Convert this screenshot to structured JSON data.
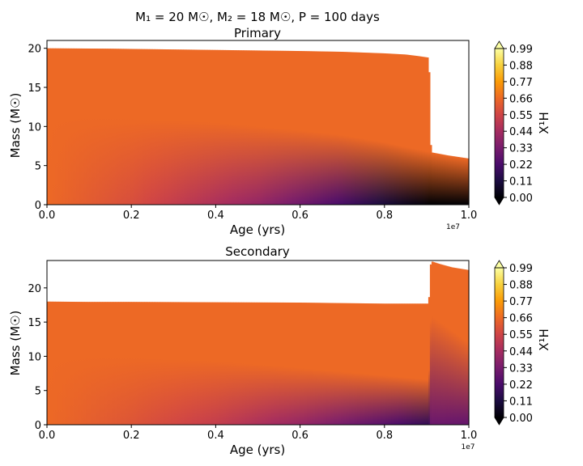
{
  "figure": {
    "suptitle": "M₁ = 20 M☉, M₂ = 18 M☉, P = 100 days",
    "colorscale_stops": [
      "#000004",
      "#1b0c41",
      "#4a0c6b",
      "#781c6d",
      "#a52c60",
      "#cf4446",
      "#ed6925",
      "#fb9b06",
      "#f7d13d",
      "#fcffa4"
    ]
  },
  "chart_data": [
    {
      "type": "heatmap",
      "title": "Primary",
      "xlabel": "Age (yrs)",
      "ylabel": "Mass (M☉)",
      "x_offset_label": "1e7",
      "xlim": [
        0.0,
        1.0
      ],
      "ylim": [
        0,
        21
      ],
      "xticks": [
        0.0,
        0.2,
        0.4,
        0.6,
        0.8,
        1.0
      ],
      "xtick_labels": [
        "0.0",
        "0.2",
        "0.4",
        "0.6",
        "0.8",
        "1.0"
      ],
      "yticks": [
        0,
        5,
        10,
        15,
        20
      ],
      "ytick_labels": [
        "0",
        "5",
        "10",
        "15",
        "20"
      ],
      "colorbar": {
        "label": "X¹H",
        "range": [
          0.0,
          0.99
        ],
        "extend": "both",
        "ticks": [
          0.0,
          0.11,
          0.22,
          0.33,
          0.44,
          0.55,
          0.66,
          0.77,
          0.88,
          0.99
        ],
        "tick_labels": [
          "0.00",
          "0.11",
          "0.22",
          "0.33",
          "0.44",
          "0.55",
          "0.66",
          "0.77",
          "0.88",
          "0.99"
        ]
      },
      "total_mass": {
        "x": [
          0.0,
          0.15,
          0.3,
          0.45,
          0.6,
          0.7,
          0.8,
          0.85,
          0.88,
          0.905,
          0.91,
          0.95,
          1.0
        ],
        "y": [
          20.0,
          19.95,
          19.85,
          19.75,
          19.65,
          19.55,
          19.35,
          19.2,
          19.0,
          18.8,
          6.7,
          6.3,
          5.9
        ]
      },
      "core_boundary": {
        "x": [
          0.0,
          0.1,
          0.2,
          0.3,
          0.4,
          0.5,
          0.6,
          0.7,
          0.8,
          0.85,
          0.905
        ],
        "y": [
          11.2,
          11.2,
          11.0,
          10.8,
          10.5,
          10.0,
          9.5,
          8.9,
          8.0,
          7.4,
          6.8
        ]
      },
      "core_center_x1H": {
        "x": [
          0.0,
          0.2,
          0.4,
          0.5,
          0.6,
          0.7,
          0.8,
          0.85,
          0.9,
          0.905
        ],
        "y": [
          0.66,
          0.58,
          0.46,
          0.4,
          0.31,
          0.21,
          0.1,
          0.05,
          0.01,
          0.0
        ]
      },
      "envelope_x1H": 0.66
    },
    {
      "type": "heatmap",
      "title": "Secondary",
      "xlabel": "Age (yrs)",
      "ylabel": "Mass (M☉)",
      "x_offset_label": "1e7",
      "xlim": [
        0.0,
        1.0
      ],
      "ylim": [
        0,
        24
      ],
      "xticks": [
        0.0,
        0.2,
        0.4,
        0.6,
        0.8,
        1.0
      ],
      "xtick_labels": [
        "0.0",
        "0.2",
        "0.4",
        "0.6",
        "0.8",
        "1.0"
      ],
      "yticks": [
        0,
        5,
        10,
        15,
        20
      ],
      "ytick_labels": [
        "0",
        "5",
        "10",
        "15",
        "20"
      ],
      "colorbar": {
        "label": "X¹H",
        "range": [
          0.0,
          0.99
        ],
        "extend": "both",
        "ticks": [
          0.0,
          0.11,
          0.22,
          0.33,
          0.44,
          0.55,
          0.66,
          0.77,
          0.88,
          0.99
        ],
        "tick_labels": [
          "0.00",
          "0.11",
          "0.22",
          "0.33",
          "0.44",
          "0.55",
          "0.66",
          "0.77",
          "0.88",
          "0.99"
        ]
      },
      "total_mass": {
        "x": [
          0.0,
          0.1,
          0.2,
          0.4,
          0.6,
          0.8,
          0.9,
          0.905,
          0.91,
          0.93,
          0.96,
          1.0
        ],
        "y": [
          18.0,
          17.95,
          17.95,
          17.9,
          17.85,
          17.7,
          17.7,
          17.7,
          23.9,
          23.5,
          23.0,
          22.6
        ]
      },
      "core_boundary": {
        "x": [
          0.0,
          0.2,
          0.4,
          0.6,
          0.8,
          0.905,
          0.91,
          1.0
        ],
        "y": [
          10.0,
          9.8,
          9.3,
          8.3,
          7.2,
          6.6,
          16.0,
          12.0
        ]
      },
      "core_center_x1H": {
        "x": [
          0.0,
          0.2,
          0.4,
          0.6,
          0.8,
          0.905,
          0.91,
          1.0
        ],
        "y": [
          0.66,
          0.6,
          0.52,
          0.4,
          0.25,
          0.16,
          0.3,
          0.28
        ]
      },
      "envelope_x1H": 0.66
    }
  ]
}
